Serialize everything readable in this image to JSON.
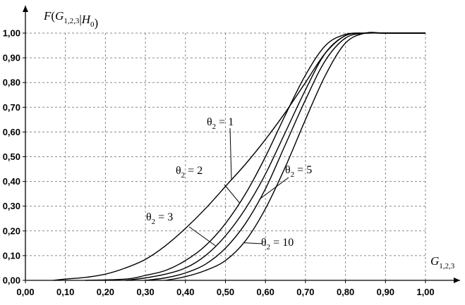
{
  "chart_data": {
    "type": "line",
    "title": "",
    "ylabel": "F(G1,2,3 | H0)",
    "xlabel": "G1,2,3",
    "xlim": [
      0,
      1.1
    ],
    "ylim": [
      0,
      1.05
    ],
    "x_ticks": [
      "0,00",
      "0,10",
      "0,20",
      "0,30",
      "0,40",
      "0,50",
      "0,60",
      "0,70",
      "0,80",
      "0,90",
      "1,00"
    ],
    "x_tick_values": [
      0,
      0.1,
      0.2,
      0.3,
      0.4,
      0.5,
      0.6,
      0.7,
      0.8,
      0.9,
      1.0
    ],
    "y_ticks": [
      "0,00",
      "0,10",
      "0,20",
      "0,30",
      "0,40",
      "0,50",
      "0,60",
      "0,70",
      "0,80",
      "0,90",
      "1,00"
    ],
    "y_tick_values": [
      0,
      0.1,
      0.2,
      0.3,
      0.4,
      0.5,
      0.6,
      0.7,
      0.8,
      0.9,
      1.0
    ],
    "grid": true,
    "series": [
      {
        "name": "θ2 = 1",
        "x": [
          0.07,
          0.1,
          0.15,
          0.2,
          0.25,
          0.3,
          0.35,
          0.4,
          0.45,
          0.5,
          0.55,
          0.6,
          0.65,
          0.7,
          0.75,
          0.8,
          0.85,
          0.9,
          1.0
        ],
        "y": [
          0.0,
          0.005,
          0.012,
          0.025,
          0.05,
          0.085,
          0.14,
          0.21,
          0.29,
          0.38,
          0.47,
          0.57,
          0.68,
          0.8,
          0.92,
          0.99,
          1.0,
          1.0,
          1.0
        ]
      },
      {
        "name": "θ2 = 2",
        "x": [
          0.15,
          0.25,
          0.3,
          0.35,
          0.4,
          0.45,
          0.5,
          0.55,
          0.6,
          0.65,
          0.7,
          0.75,
          0.8,
          0.85,
          0.9,
          1.0
        ],
        "y": [
          0.0,
          0.005,
          0.02,
          0.04,
          0.08,
          0.14,
          0.23,
          0.35,
          0.5,
          0.67,
          0.83,
          0.95,
          0.995,
          1.0,
          1.0,
          1.0
        ]
      },
      {
        "name": "θ2 = 3",
        "x": [
          0.25,
          0.3,
          0.35,
          0.4,
          0.45,
          0.5,
          0.55,
          0.6,
          0.65,
          0.7,
          0.75,
          0.8,
          0.85,
          0.9,
          1.0
        ],
        "y": [
          0.0,
          0.01,
          0.025,
          0.05,
          0.1,
          0.18,
          0.29,
          0.43,
          0.6,
          0.77,
          0.92,
          0.99,
          1.0,
          1.0,
          1.0
        ]
      },
      {
        "name": "θ2 = 5",
        "x": [
          0.3,
          0.35,
          0.4,
          0.45,
          0.5,
          0.55,
          0.6,
          0.65,
          0.7,
          0.75,
          0.8,
          0.85,
          0.9,
          1.0
        ],
        "y": [
          0.0,
          0.01,
          0.03,
          0.065,
          0.13,
          0.23,
          0.37,
          0.55,
          0.73,
          0.89,
          0.98,
          1.0,
          1.0,
          1.0
        ]
      },
      {
        "name": "θ2 = 10",
        "x": [
          0.35,
          0.4,
          0.45,
          0.5,
          0.55,
          0.6,
          0.65,
          0.7,
          0.75,
          0.8,
          0.85,
          0.9,
          1.0
        ],
        "y": [
          0.0,
          0.015,
          0.04,
          0.08,
          0.16,
          0.29,
          0.46,
          0.65,
          0.83,
          0.96,
          1.0,
          1.0,
          1.0
        ]
      }
    ],
    "annotations": [
      {
        "text": "θ2 = 1",
        "series": 0
      },
      {
        "text": "θ2 = 2",
        "series": 1
      },
      {
        "text": "θ2 = 3",
        "series": 2
      },
      {
        "text": "θ2 = 5",
        "series": 3
      },
      {
        "text": "θ2 = 10",
        "series": 4
      }
    ]
  }
}
